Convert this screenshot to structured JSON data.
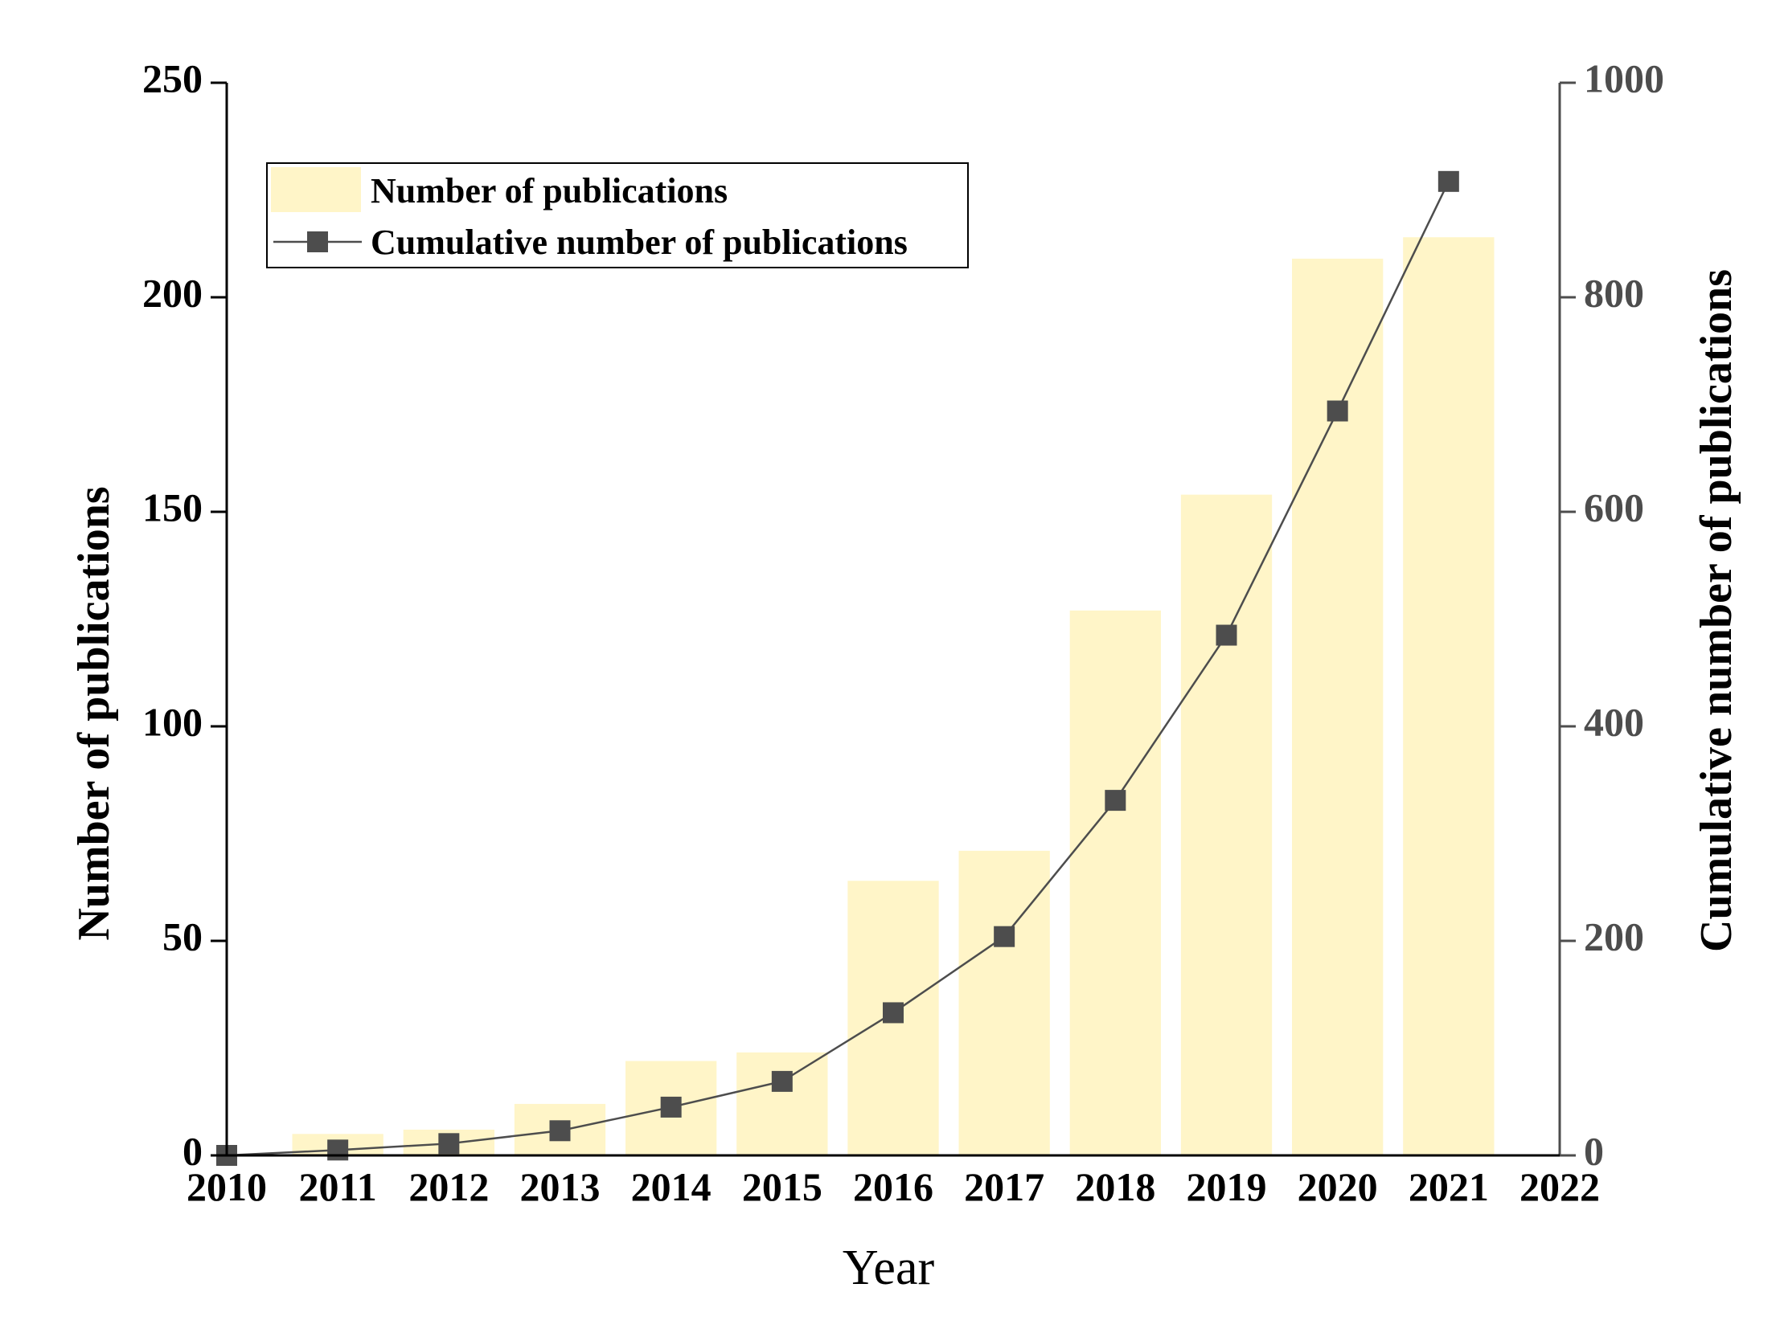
{
  "chart_data": {
    "type": "bar+line",
    "title": "",
    "xlabel": "Year",
    "ylabel_left": "Number of publications",
    "ylabel_right": "Cumulative number of publications",
    "x_ticks": [
      "2010",
      "2011",
      "2012",
      "2013",
      "2014",
      "2015",
      "2016",
      "2017",
      "2018",
      "2019",
      "2020",
      "2021",
      "2022"
    ],
    "xlim": [
      2010,
      2022
    ],
    "ylim_left": [
      0,
      250
    ],
    "ylim_right": [
      0,
      1000
    ],
    "y_ticks_left": [
      "0",
      "50",
      "100",
      "150",
      "200",
      "250"
    ],
    "y_ticks_right": [
      "0",
      "200",
      "400",
      "600",
      "800",
      "1000"
    ],
    "legend_position": "top-left",
    "colors": {
      "bars": "#fff5c8",
      "line": "#4d4d4d",
      "left_axis": "#000000",
      "right_axis": "#4d4d4d"
    },
    "series": [
      {
        "name": "Number of publications",
        "kind": "bar",
        "axis": "left",
        "x": [
          2011,
          2012,
          2013,
          2014,
          2015,
          2016,
          2017,
          2018,
          2019,
          2020,
          2021
        ],
        "values": [
          5,
          6,
          12,
          22,
          24,
          64,
          71,
          127,
          154,
          209,
          214
        ]
      },
      {
        "name": "Cumulative number of publications",
        "kind": "line",
        "marker": "square",
        "axis": "right",
        "x": [
          2010,
          2011,
          2012,
          2013,
          2014,
          2015,
          2016,
          2017,
          2018,
          2019,
          2020,
          2021
        ],
        "values": [
          0,
          5,
          11,
          23,
          45,
          69,
          133,
          204,
          331,
          485,
          694,
          908
        ]
      }
    ]
  }
}
